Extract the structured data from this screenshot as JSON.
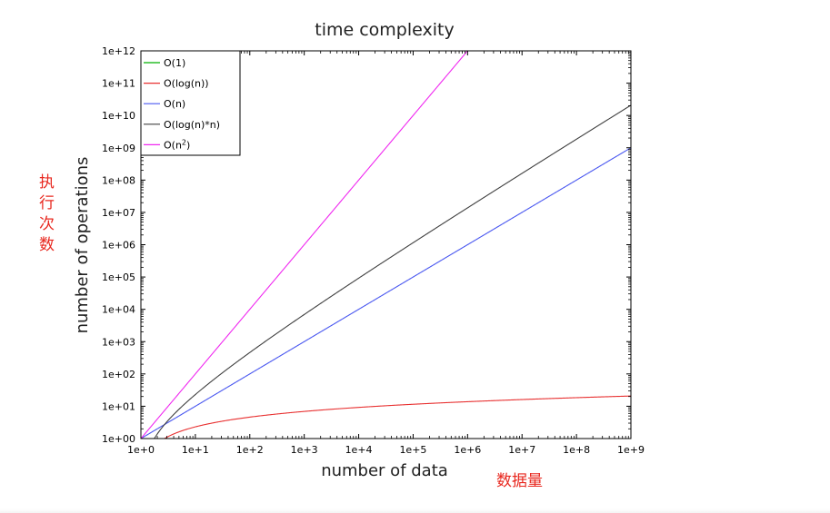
{
  "chart_data": {
    "type": "line",
    "title": "time complexity",
    "xlabel": "number of data",
    "ylabel": "number of operations",
    "x_scale": "log",
    "y_scale": "log",
    "xlim": [
      1,
      1000000000
    ],
    "ylim": [
      1,
      1000000000000
    ],
    "x_ticks": [
      "1e+0",
      "1e+1",
      "1e+2",
      "1e+3",
      "1e+4",
      "1e+5",
      "1e+6",
      "1e+7",
      "1e+8",
      "1e+9"
    ],
    "y_ticks": [
      "1e+00",
      "1e+01",
      "1e+02",
      "1e+03",
      "1e+04",
      "1e+05",
      "1e+06",
      "1e+07",
      "1e+08",
      "1e+09",
      "1e+10",
      "1e+11",
      "1e+12"
    ],
    "grid": false,
    "legend_position": "top-left",
    "series": [
      {
        "name": "O(1)",
        "formula": "1",
        "color": "#00b000"
      },
      {
        "name": "O(log(n))",
        "formula": "log(n)",
        "color": "#e83030"
      },
      {
        "name": "O(n)",
        "formula": "n",
        "color": "#4a58f0"
      },
      {
        "name": "O(log(n)*n)",
        "formula": "log(n)*n",
        "color": "#404040"
      },
      {
        "name": "O(n",
        "name_superscript": "2",
        "name_suffix": ")",
        "formula": "n^2",
        "color": "#f028f0"
      }
    ]
  },
  "annotations": {
    "ylabel_cn": [
      "执",
      "行",
      "次",
      "数"
    ],
    "xlabel_cn": "数据量",
    "color": "#e8281f"
  }
}
